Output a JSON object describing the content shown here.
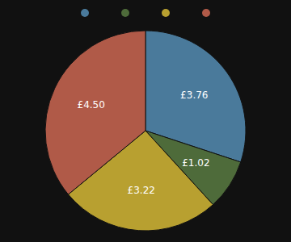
{
  "chart_data": {
    "type": "pie",
    "values": [
      3.76,
      1.02,
      3.22,
      4.5
    ],
    "value_labels": [
      "£3.76",
      "£1.02",
      "£3.22",
      "£4.50"
    ],
    "colors": [
      "#4a7a9b",
      "#4e6b3a",
      "#b8a030",
      "#b05a48"
    ],
    "data_labels": true,
    "legend": "top"
  }
}
